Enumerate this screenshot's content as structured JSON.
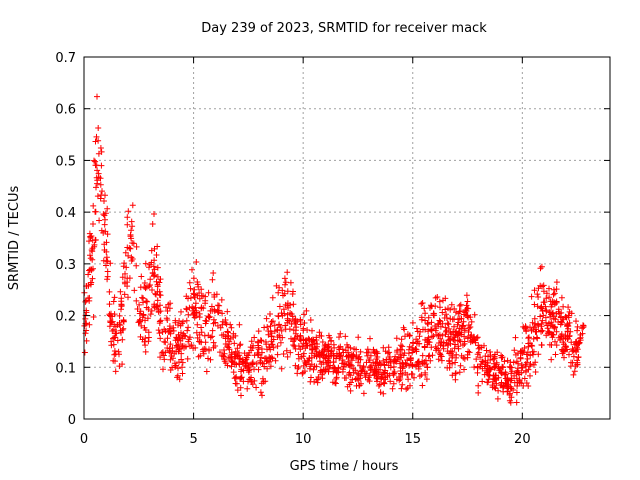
{
  "chart_data": {
    "type": "scatter",
    "title": "Day 239 of 2023, SRMTID for receiver mack",
    "xlabel": "GPS time / hours",
    "ylabel": "SRMTID / TECUs",
    "xlim": [
      0,
      24
    ],
    "ylim": [
      0,
      0.7
    ],
    "xticks": [
      0,
      5,
      10,
      15,
      20
    ],
    "yticks": [
      0,
      0.1,
      0.2,
      0.3,
      0.4,
      0.5,
      0.6,
      0.7
    ],
    "xtick_labels": [
      "0",
      "5",
      "10",
      "15",
      "20"
    ],
    "ytick_labels": [
      "0",
      "0.1",
      "0.2",
      "0.3",
      "0.4",
      "0.5",
      "0.6",
      "0.7"
    ],
    "grid": true,
    "marker": "plus",
    "color": "#ff0000",
    "data_extent_hours": [
      0,
      22.8
    ],
    "profile": {
      "description_hours": [
        0.0,
        0.3,
        0.5,
        0.6,
        0.8,
        1.0,
        1.2,
        1.5,
        1.8,
        2.1,
        2.3,
        2.6,
        2.9,
        3.2,
        3.5,
        4.0,
        4.5,
        5.0,
        5.3,
        5.6,
        6.0,
        6.5,
        7.0,
        7.5,
        8.0,
        8.5,
        9.0,
        9.3,
        9.6,
        10.0,
        11.0,
        12.0,
        13.0,
        14.0,
        15.0,
        15.7,
        16.0,
        16.5,
        17.0,
        17.5,
        18.0,
        18.5,
        19.0,
        19.5,
        20.0,
        20.5,
        20.8,
        21.0,
        21.5,
        22.0,
        22.4,
        22.8
      ],
      "central_tecu": [
        0.18,
        0.3,
        0.38,
        0.48,
        0.42,
        0.35,
        0.2,
        0.15,
        0.22,
        0.38,
        0.3,
        0.2,
        0.22,
        0.3,
        0.18,
        0.15,
        0.14,
        0.22,
        0.2,
        0.17,
        0.2,
        0.15,
        0.11,
        0.1,
        0.12,
        0.14,
        0.2,
        0.22,
        0.17,
        0.14,
        0.12,
        0.11,
        0.1,
        0.1,
        0.12,
        0.16,
        0.18,
        0.16,
        0.15,
        0.19,
        0.12,
        0.1,
        0.09,
        0.07,
        0.12,
        0.15,
        0.22,
        0.2,
        0.19,
        0.17,
        0.13,
        0.15
      ],
      "spread_tecu": [
        0.05,
        0.08,
        0.12,
        0.1,
        0.1,
        0.08,
        0.07,
        0.06,
        0.08,
        0.1,
        0.09,
        0.07,
        0.08,
        0.1,
        0.06,
        0.05,
        0.05,
        0.08,
        0.07,
        0.06,
        0.07,
        0.05,
        0.05,
        0.04,
        0.05,
        0.05,
        0.08,
        0.08,
        0.06,
        0.05,
        0.04,
        0.04,
        0.04,
        0.04,
        0.05,
        0.07,
        0.07,
        0.06,
        0.06,
        0.07,
        0.05,
        0.04,
        0.04,
        0.04,
        0.05,
        0.07,
        0.09,
        0.07,
        0.06,
        0.05,
        0.04,
        0.05
      ]
    }
  }
}
